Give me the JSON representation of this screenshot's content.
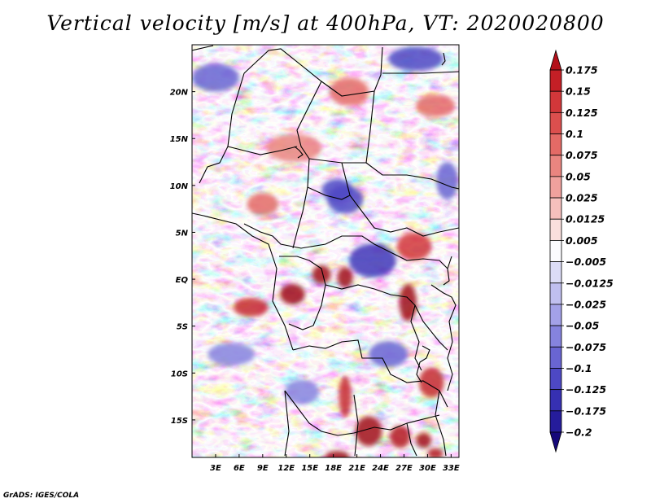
{
  "title": "Vertical velocity [m/s] at 400hPa, VT: 2020020800",
  "credit": "GrADS: IGES/COLA",
  "map": {
    "variable": "Vertical velocity",
    "units": "m/s",
    "level": "400hPa",
    "valid_time": "2020020800",
    "lon_range": [
      0,
      34
    ],
    "lat_range": [
      -19,
      25
    ],
    "x_ticks": [
      {
        "lon": 3,
        "label": "3E"
      },
      {
        "lon": 6,
        "label": "6E"
      },
      {
        "lon": 9,
        "label": "9E"
      },
      {
        "lon": 12,
        "label": "12E"
      },
      {
        "lon": 15,
        "label": "15E"
      },
      {
        "lon": 18,
        "label": "18E"
      },
      {
        "lon": 21,
        "label": "21E"
      },
      {
        "lon": 24,
        "label": "24E"
      },
      {
        "lon": 27,
        "label": "27E"
      },
      {
        "lon": 30,
        "label": "30E"
      },
      {
        "lon": 33,
        "label": "33E"
      }
    ],
    "y_ticks": [
      {
        "lat": 20,
        "label": "20N"
      },
      {
        "lat": 15,
        "label": "15N"
      },
      {
        "lat": 10,
        "label": "10N"
      },
      {
        "lat": 5,
        "label": "5N"
      },
      {
        "lat": 0,
        "label": "EQ"
      },
      {
        "lat": -5,
        "label": "5S"
      },
      {
        "lat": -10,
        "label": "10S"
      },
      {
        "lat": -15,
        "label": "15S"
      }
    ]
  },
  "colorbar": {
    "levels": [
      "0.175",
      "0.15",
      "0.125",
      "0.1",
      "0.075",
      "0.05",
      "0.025",
      "0.0125",
      "0.005",
      "-0.005",
      "-0.0125",
      "-0.025",
      "-0.05",
      "-0.075",
      "-0.1",
      "-0.125",
      "-0.175",
      "-0.2"
    ],
    "colors": [
      "#b3101a",
      "#c41f26",
      "#d2373a",
      "#dc4f4e",
      "#e46a66",
      "#ea8580",
      "#f0a19d",
      "#f6c0bd",
      "#fadfdd",
      "#fbfbfe",
      "#dcdcf7",
      "#c0bff0",
      "#a3a1e8",
      "#8583de",
      "#6965d2",
      "#4d48c4",
      "#3630b2",
      "#251c9b",
      "#15087a"
    ]
  },
  "features": [
    {
      "lon": 27.5,
      "lat": -2.5,
      "rx": 1.1,
      "ry": 2.0,
      "color": "#a00d16"
    },
    {
      "lon": 16.5,
      "lat": 0.5,
      "rx": 1.2,
      "ry": 1.0,
      "color": "#a00d16"
    },
    {
      "lon": 19.5,
      "lat": 0.2,
      "rx": 1.0,
      "ry": 1.1,
      "color": "#a00d16"
    },
    {
      "lon": 7.5,
      "lat": -3.0,
      "rx": 2.2,
      "ry": 1.0,
      "color": "#c42a2d"
    },
    {
      "lon": 12.8,
      "lat": -1.6,
      "rx": 1.6,
      "ry": 1.1,
      "color": "#a00d16"
    },
    {
      "lon": 22.5,
      "lat": -16.2,
      "rx": 1.7,
      "ry": 1.6,
      "color": "#a00d16"
    },
    {
      "lon": 26.5,
      "lat": -16.8,
      "rx": 1.3,
      "ry": 1.2,
      "color": "#b21b22"
    },
    {
      "lon": 19.5,
      "lat": -12.5,
      "rx": 0.8,
      "ry": 2.2,
      "color": "#c42a2d"
    },
    {
      "lon": 29.5,
      "lat": -17.2,
      "rx": 1.0,
      "ry": 0.8,
      "color": "#a00d16"
    },
    {
      "lon": 30.5,
      "lat": -11.0,
      "rx": 1.6,
      "ry": 1.6,
      "color": "#c42a2d"
    },
    {
      "lon": 28.3,
      "lat": 3.5,
      "rx": 2.2,
      "ry": 1.5,
      "color": "#d2373a"
    },
    {
      "lon": 18.5,
      "lat": -19.0,
      "rx": 1.6,
      "ry": 0.7,
      "color": "#a00d16"
    },
    {
      "lon": 31.0,
      "lat": -18.6,
      "rx": 1.0,
      "ry": 0.6,
      "color": "#b21b22"
    },
    {
      "lon": 23.0,
      "lat": 2.0,
      "rx": 3.0,
      "ry": 1.8,
      "color": "#3f37b8"
    },
    {
      "lon": 19.5,
      "lat": 8.5,
      "rx": 2.3,
      "ry": 1.5,
      "color": "#4d48c4"
    },
    {
      "lon": 18.5,
      "lat": 9.5,
      "rx": 2.0,
      "ry": 1.2,
      "color": "#4d48c4"
    },
    {
      "lon": 28.5,
      "lat": 23.5,
      "rx": 3.5,
      "ry": 1.3,
      "color": "#4d48c4"
    },
    {
      "lon": 3.0,
      "lat": 21.5,
      "rx": 3.0,
      "ry": 1.5,
      "color": "#6965d2"
    },
    {
      "lon": 25.0,
      "lat": -8.0,
      "rx": 2.5,
      "ry": 1.4,
      "color": "#6965d2"
    },
    {
      "lon": 32.5,
      "lat": 10.5,
      "rx": 1.4,
      "ry": 2.0,
      "color": "#6965d2"
    },
    {
      "lon": 20.0,
      "lat": 20.0,
      "rx": 2.5,
      "ry": 1.5,
      "color": "#e46a66"
    },
    {
      "lon": 13.0,
      "lat": 14.0,
      "rx": 3.5,
      "ry": 1.5,
      "color": "#ea8580"
    },
    {
      "lon": 9.0,
      "lat": 8.0,
      "rx": 2.0,
      "ry": 1.2,
      "color": "#e46a66"
    },
    {
      "lon": 31.0,
      "lat": 18.5,
      "rx": 2.5,
      "ry": 1.2,
      "color": "#e46a66"
    },
    {
      "lon": 5.0,
      "lat": -8.0,
      "rx": 3.0,
      "ry": 1.2,
      "color": "#8583de"
    },
    {
      "lon": 14.0,
      "lat": -12.0,
      "rx": 2.2,
      "ry": 1.3,
      "color": "#8583de"
    }
  ]
}
